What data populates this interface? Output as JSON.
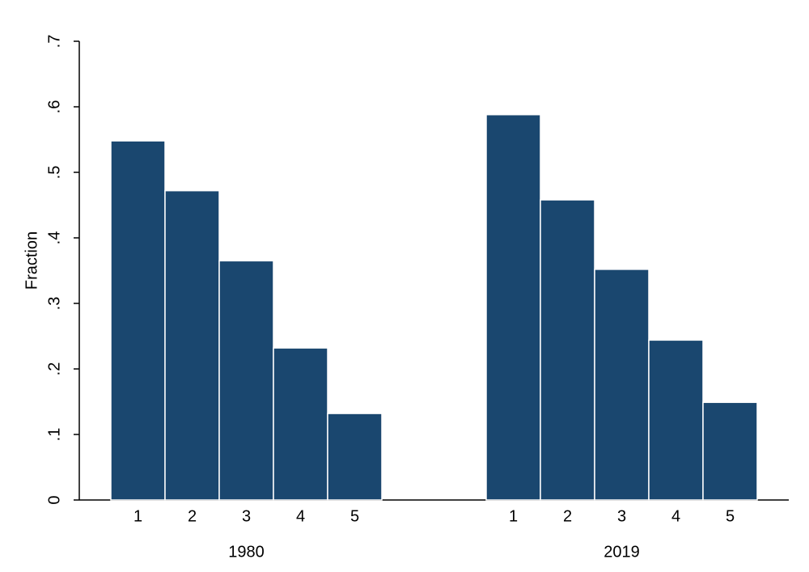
{
  "chart_data": {
    "type": "bar",
    "y_label": "Fraction",
    "color": "#1a476f",
    "groups": [
      {
        "label": "1980",
        "categories": [
          "1",
          "2",
          "3",
          "4",
          "5"
        ],
        "values": [
          0.548,
          0.472,
          0.365,
          0.232,
          0.132
        ]
      },
      {
        "label": "2019",
        "categories": [
          "1",
          "2",
          "3",
          "4",
          "5"
        ],
        "values": [
          0.588,
          0.458,
          0.352,
          0.244,
          0.149
        ]
      }
    ],
    "ylim": [
      0,
      0.7
    ],
    "yticks": [
      0,
      {
        "value": 0.1,
        "label": ".1"
      },
      {
        "value": 0.2,
        "label": ".2"
      },
      {
        "value": 0.3,
        "label": ".3"
      },
      {
        "value": 0.4,
        "label": ".4"
      },
      {
        "value": 0.5,
        "label": ".5"
      },
      {
        "value": 0.6,
        "label": ".6"
      },
      {
        "value": 0.7,
        "label": ".7"
      }
    ],
    "grid": false
  }
}
